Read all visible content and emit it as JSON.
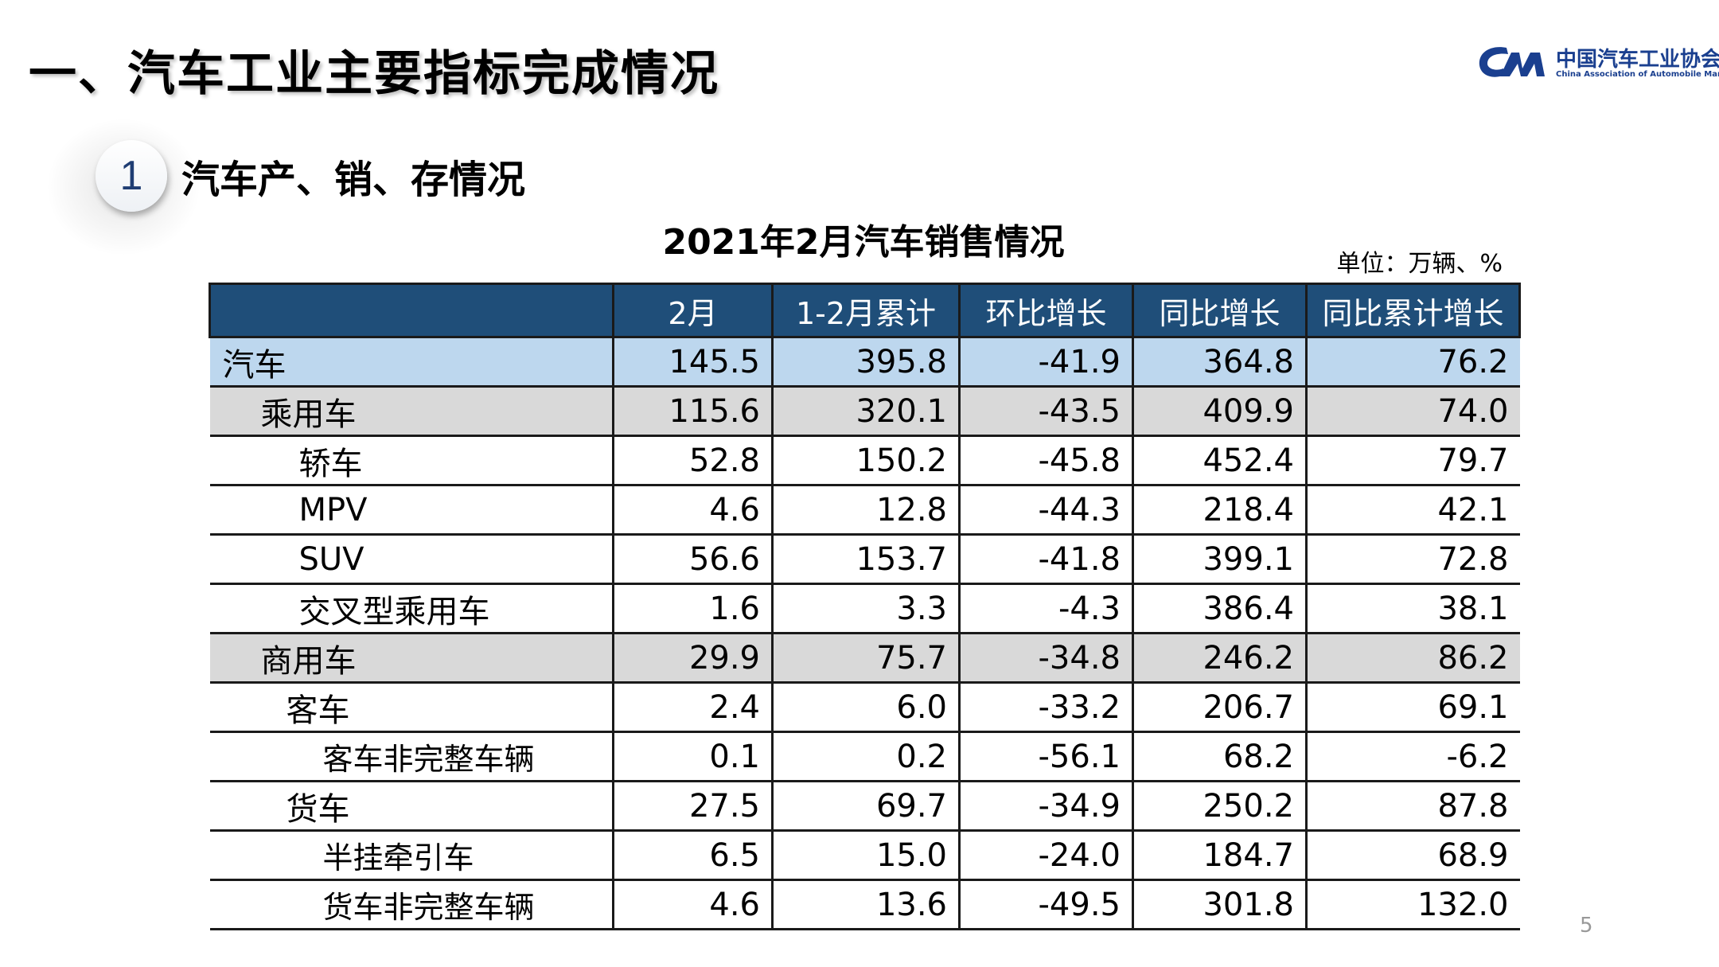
{
  "header": {
    "title": "一、汽车工业主要指标完成情况"
  },
  "logo": {
    "cn": "中国汽车工业协会",
    "en": "China Association of Automobile Manufacturers",
    "mark_text": "CAM",
    "color": "#1a3f8f"
  },
  "section": {
    "number": "1",
    "title": "汽车产、销、存情况"
  },
  "table": {
    "title": "2021年2月汽车销售情况",
    "unit": "单位：万辆、%",
    "columns": [
      "",
      "2月",
      "1-2月累计",
      "环比增长",
      "同比增长",
      "同比累计增长"
    ],
    "rows": [
      {
        "name": "汽车",
        "values": [
          "145.5",
          "395.8",
          "-41.9",
          "364.8",
          "76.2"
        ]
      },
      {
        "name": "乘用车",
        "values": [
          "115.6",
          "320.1",
          "-43.5",
          "409.9",
          "74.0"
        ]
      },
      {
        "name": "轿车",
        "values": [
          "52.8",
          "150.2",
          "-45.8",
          "452.4",
          "79.7"
        ]
      },
      {
        "name": "MPV",
        "values": [
          "4.6",
          "12.8",
          "-44.3",
          "218.4",
          "42.1"
        ]
      },
      {
        "name": "SUV",
        "values": [
          "56.6",
          "153.7",
          "-41.8",
          "399.1",
          "72.8"
        ]
      },
      {
        "name": "交叉型乘用车",
        "values": [
          "1.6",
          "3.3",
          "-4.3",
          "386.4",
          "38.1"
        ]
      },
      {
        "name": "商用车",
        "values": [
          "29.9",
          "75.7",
          "-34.8",
          "246.2",
          "86.2"
        ]
      },
      {
        "name": "客车",
        "values": [
          "2.4",
          "6.0",
          "-33.2",
          "206.7",
          "69.1"
        ]
      },
      {
        "name": "客车非完整车辆",
        "values": [
          "0.1",
          "0.2",
          "-56.1",
          "68.2",
          "-6.2"
        ]
      },
      {
        "name": "货车",
        "values": [
          "27.5",
          "69.7",
          "-34.9",
          "250.2",
          "87.8"
        ]
      },
      {
        "name": "半挂牵引车",
        "values": [
          "6.5",
          "15.0",
          "-24.0",
          "184.7",
          "68.9"
        ]
      },
      {
        "name": "货车非完整车辆",
        "values": [
          "4.6",
          "13.6",
          "-49.5",
          "301.8",
          "132.0"
        ]
      }
    ],
    "colors": {
      "header_bg": "#1f4e79",
      "total_row_bg": "#bdd7ee",
      "category_row_bg": "#d9d9d9"
    }
  },
  "page": {
    "number": "5"
  }
}
